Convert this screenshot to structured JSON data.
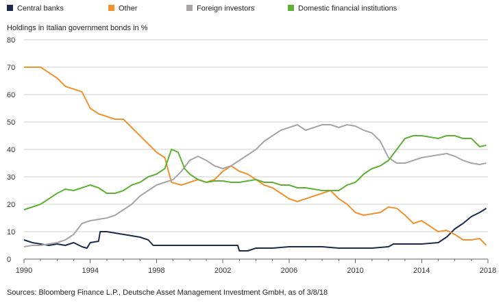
{
  "chart_data": {
    "type": "line",
    "ylabel": "Holdings in Italian government bonds in %",
    "ylim": [
      0,
      80
    ],
    "yticks": [
      0,
      10,
      20,
      30,
      40,
      50,
      60,
      70,
      80
    ],
    "xlim": [
      1990,
      2018
    ],
    "xticks": [
      1990,
      1994,
      1998,
      2002,
      2006,
      2010,
      2014,
      2018
    ],
    "grid": "horizontal",
    "legend_placement": "top-left",
    "source": "Sources: Bloomberg Finance L.P., Deutsche Asset Management Investment GmbH, as of 3/8/18",
    "series": [
      {
        "name": "Central banks",
        "color": "#1b2a4e",
        "points": [
          [
            1990,
            7
          ],
          [
            1990.5,
            6
          ],
          [
            1991,
            5.5
          ],
          [
            1991.5,
            5
          ],
          [
            1992,
            5.5
          ],
          [
            1992.5,
            5
          ],
          [
            1993,
            6
          ],
          [
            1993.5,
            4.5
          ],
          [
            1993.8,
            4
          ],
          [
            1994,
            6
          ],
          [
            1994.5,
            6.5
          ],
          [
            1994.6,
            10
          ],
          [
            1995,
            10
          ],
          [
            1995.5,
            9.5
          ],
          [
            1996,
            9
          ],
          [
            1996.5,
            8.5
          ],
          [
            1997,
            8
          ],
          [
            1997.5,
            7
          ],
          [
            1997.8,
            5
          ],
          [
            1998,
            5
          ],
          [
            1999,
            5
          ],
          [
            2000,
            5
          ],
          [
            2001,
            5
          ],
          [
            2002,
            5
          ],
          [
            2002.9,
            5
          ],
          [
            2003,
            3
          ],
          [
            2003.5,
            3
          ],
          [
            2004,
            4
          ],
          [
            2005,
            4
          ],
          [
            2006,
            4.5
          ],
          [
            2007,
            4.5
          ],
          [
            2008,
            4.5
          ],
          [
            2009,
            4
          ],
          [
            2010,
            4
          ],
          [
            2011,
            4
          ],
          [
            2012,
            4.5
          ],
          [
            2012.3,
            5.5
          ],
          [
            2013,
            5.5
          ],
          [
            2014,
            5.5
          ],
          [
            2015,
            6
          ],
          [
            2015.5,
            8
          ],
          [
            2016,
            11
          ],
          [
            2016.5,
            13
          ],
          [
            2017,
            15.5
          ],
          [
            2017.5,
            17
          ],
          [
            2017.9,
            18.5
          ]
        ]
      },
      {
        "name": "Other",
        "color": "#f0922e",
        "points": [
          [
            1990,
            70
          ],
          [
            1990.5,
            70
          ],
          [
            1991,
            70
          ],
          [
            1991.5,
            68
          ],
          [
            1992,
            66
          ],
          [
            1992.5,
            63
          ],
          [
            1993,
            62
          ],
          [
            1993.5,
            61
          ],
          [
            1994,
            55
          ],
          [
            1994.5,
            53
          ],
          [
            1995,
            52
          ],
          [
            1995.5,
            51
          ],
          [
            1996,
            51
          ],
          [
            1996.5,
            48
          ],
          [
            1997,
            45
          ],
          [
            1997.5,
            42
          ],
          [
            1998,
            39
          ],
          [
            1998.5,
            37
          ],
          [
            1998.9,
            28
          ],
          [
            1999.5,
            27
          ],
          [
            2000,
            28
          ],
          [
            2000.5,
            29
          ],
          [
            2001,
            28
          ],
          [
            2001.5,
            29
          ],
          [
            2002,
            32
          ],
          [
            2002.5,
            34
          ],
          [
            2003,
            32
          ],
          [
            2003.5,
            31
          ],
          [
            2004,
            29
          ],
          [
            2004.5,
            27
          ],
          [
            2005,
            26
          ],
          [
            2005.5,
            24
          ],
          [
            2006,
            22
          ],
          [
            2006.5,
            21
          ],
          [
            2007,
            22
          ],
          [
            2007.5,
            23
          ],
          [
            2008,
            24
          ],
          [
            2008.5,
            25
          ],
          [
            2009,
            22
          ],
          [
            2009.5,
            20
          ],
          [
            2010,
            17
          ],
          [
            2010.5,
            16
          ],
          [
            2011,
            16.5
          ],
          [
            2011.5,
            17
          ],
          [
            2012,
            19
          ],
          [
            2012.5,
            18.5
          ],
          [
            2013,
            16
          ],
          [
            2013.5,
            13
          ],
          [
            2014,
            14
          ],
          [
            2014.5,
            12
          ],
          [
            2015,
            10
          ],
          [
            2015.5,
            10.5
          ],
          [
            2016,
            9
          ],
          [
            2016.5,
            7
          ],
          [
            2017,
            7
          ],
          [
            2017.5,
            7.5
          ],
          [
            2017.9,
            5
          ]
        ]
      },
      {
        "name": "Foreign investors",
        "color": "#a8a4a5",
        "points": [
          [
            1990,
            4.5
          ],
          [
            1990.5,
            5
          ],
          [
            1991,
            5
          ],
          [
            1991.5,
            5.5
          ],
          [
            1992,
            6
          ],
          [
            1992.5,
            7
          ],
          [
            1993,
            9
          ],
          [
            1993.5,
            13
          ],
          [
            1994,
            14
          ],
          [
            1994.5,
            14.5
          ],
          [
            1995,
            15
          ],
          [
            1995.5,
            16
          ],
          [
            1996,
            18
          ],
          [
            1996.5,
            20
          ],
          [
            1997,
            23
          ],
          [
            1997.5,
            25
          ],
          [
            1998,
            27
          ],
          [
            1998.5,
            28
          ],
          [
            1999,
            29
          ],
          [
            1999.5,
            32
          ],
          [
            2000,
            36
          ],
          [
            2000.5,
            37.5
          ],
          [
            2001,
            36
          ],
          [
            2001.5,
            34
          ],
          [
            2002,
            33
          ],
          [
            2002.5,
            34
          ],
          [
            2003,
            36
          ],
          [
            2003.5,
            38
          ],
          [
            2004,
            40
          ],
          [
            2004.5,
            43
          ],
          [
            2005,
            45
          ],
          [
            2005.5,
            47
          ],
          [
            2006,
            48
          ],
          [
            2006.5,
            49
          ],
          [
            2007,
            47
          ],
          [
            2007.5,
            48
          ],
          [
            2008,
            49
          ],
          [
            2008.5,
            49
          ],
          [
            2009,
            48
          ],
          [
            2009.5,
            49
          ],
          [
            2010,
            48.5
          ],
          [
            2010.5,
            47
          ],
          [
            2011,
            46
          ],
          [
            2011.5,
            43
          ],
          [
            2012,
            37
          ],
          [
            2012.5,
            35
          ],
          [
            2013,
            35
          ],
          [
            2013.5,
            36
          ],
          [
            2014,
            37
          ],
          [
            2014.5,
            37.5
          ],
          [
            2015,
            38
          ],
          [
            2015.5,
            38.5
          ],
          [
            2016,
            37.5
          ],
          [
            2016.5,
            36
          ],
          [
            2017,
            35
          ],
          [
            2017.5,
            34.5
          ],
          [
            2017.9,
            35
          ]
        ]
      },
      {
        "name": "Domestic financial institutions",
        "color": "#5db233",
        "points": [
          [
            1990,
            18
          ],
          [
            1990.5,
            19
          ],
          [
            1991,
            20
          ],
          [
            1991.5,
            22
          ],
          [
            1992,
            24
          ],
          [
            1992.5,
            25.5
          ],
          [
            1993,
            25
          ],
          [
            1993.5,
            26
          ],
          [
            1994,
            27
          ],
          [
            1994.5,
            26
          ],
          [
            1995,
            24
          ],
          [
            1995.5,
            24
          ],
          [
            1996,
            25
          ],
          [
            1996.5,
            27
          ],
          [
            1997,
            28
          ],
          [
            1997.5,
            30
          ],
          [
            1998,
            31
          ],
          [
            1998.5,
            33
          ],
          [
            1998.9,
            40
          ],
          [
            1999.3,
            39
          ],
          [
            1999.7,
            33
          ],
          [
            2000,
            31
          ],
          [
            2000.5,
            29
          ],
          [
            2001,
            28
          ],
          [
            2001.5,
            28.5
          ],
          [
            2002,
            28.5
          ],
          [
            2002.5,
            28
          ],
          [
            2003,
            28
          ],
          [
            2003.5,
            28.5
          ],
          [
            2004,
            29
          ],
          [
            2004.5,
            28
          ],
          [
            2005,
            28
          ],
          [
            2005.5,
            27
          ],
          [
            2006,
            27
          ],
          [
            2006.5,
            26
          ],
          [
            2007,
            26
          ],
          [
            2007.5,
            25.5
          ],
          [
            2008,
            25
          ],
          [
            2008.5,
            25
          ],
          [
            2009,
            25
          ],
          [
            2009.5,
            27
          ],
          [
            2010,
            28
          ],
          [
            2010.5,
            31
          ],
          [
            2011,
            33
          ],
          [
            2011.5,
            34
          ],
          [
            2012,
            36
          ],
          [
            2012.5,
            40
          ],
          [
            2013,
            44
          ],
          [
            2013.5,
            45
          ],
          [
            2014,
            45
          ],
          [
            2014.5,
            44.5
          ],
          [
            2015,
            44
          ],
          [
            2015.5,
            45
          ],
          [
            2016,
            45
          ],
          [
            2016.5,
            44
          ],
          [
            2017,
            44
          ],
          [
            2017.5,
            41
          ],
          [
            2017.9,
            41.5
          ]
        ]
      }
    ]
  }
}
